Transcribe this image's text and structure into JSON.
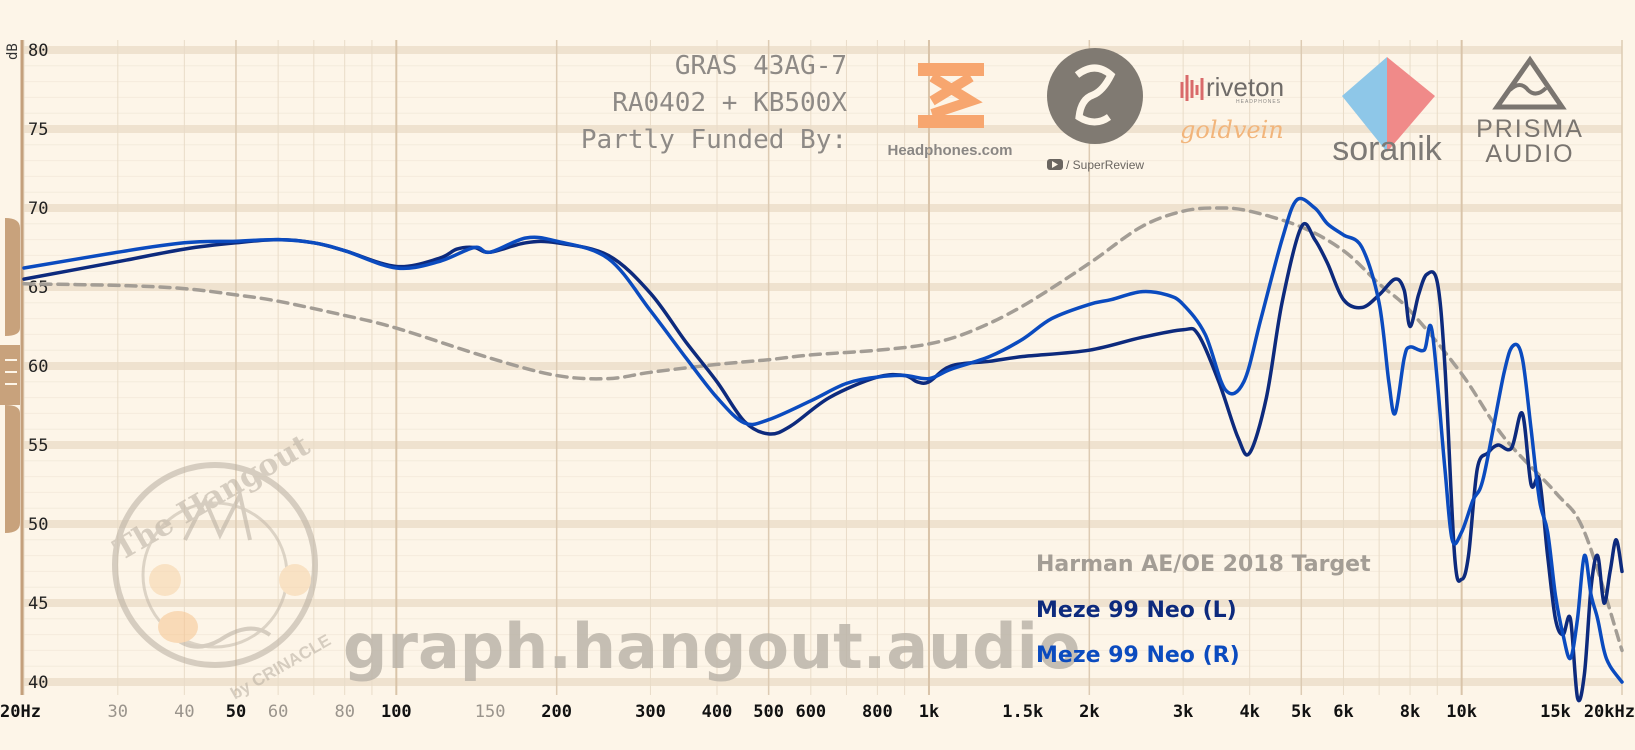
{
  "chart_data": {
    "type": "line",
    "ylabel": "dB",
    "ylim": [
      40,
      81
    ],
    "xlim": [
      20,
      20000
    ],
    "x_scale": "log",
    "grid": true,
    "y_ticks": [
      {
        "value": 80,
        "label": "80"
      },
      {
        "value": 75,
        "label": "75"
      },
      {
        "value": 70,
        "label": "70"
      },
      {
        "value": 65,
        "label": "65"
      },
      {
        "value": 60,
        "label": "60"
      },
      {
        "value": 55,
        "label": "55"
      },
      {
        "value": 50,
        "label": "50"
      },
      {
        "value": 45,
        "label": "45"
      },
      {
        "value": 40,
        "label": "40"
      }
    ],
    "x_ticks": [
      {
        "value": 20,
        "label": "20Hz",
        "major": true
      },
      {
        "value": 30,
        "label": "30",
        "major": false
      },
      {
        "value": 40,
        "label": "40",
        "major": false
      },
      {
        "value": 50,
        "label": "50",
        "major": true
      },
      {
        "value": 60,
        "label": "60",
        "major": false
      },
      {
        "value": 80,
        "label": "80",
        "major": false
      },
      {
        "value": 100,
        "label": "100",
        "major": true
      },
      {
        "value": 150,
        "label": "150",
        "major": false
      },
      {
        "value": 200,
        "label": "200",
        "major": true
      },
      {
        "value": 300,
        "label": "300",
        "major": true
      },
      {
        "value": 400,
        "label": "400",
        "major": true
      },
      {
        "value": 500,
        "label": "500",
        "major": true
      },
      {
        "value": 600,
        "label": "600",
        "major": true
      },
      {
        "value": 800,
        "label": "800",
        "major": true
      },
      {
        "value": 1000,
        "label": "1k",
        "major": true
      },
      {
        "value": 1500,
        "label": "1.5k",
        "major": true
      },
      {
        "value": 2000,
        "label": "2k",
        "major": true
      },
      {
        "value": 3000,
        "label": "3k",
        "major": true
      },
      {
        "value": 4000,
        "label": "4k",
        "major": true
      },
      {
        "value": 5000,
        "label": "5k",
        "major": true
      },
      {
        "value": 6000,
        "label": "6k",
        "major": true
      },
      {
        "value": 8000,
        "label": "8k",
        "major": true
      },
      {
        "value": 10000,
        "label": "10k",
        "major": true
      },
      {
        "value": 15000,
        "label": "15k",
        "major": true
      },
      {
        "value": 20000,
        "label": "20kHz",
        "major": true
      }
    ],
    "legend_placement": "bottom-right",
    "series": [
      {
        "name": "Harman AE/OE 2018 Target",
        "color": "#a39d95",
        "dashed": true,
        "points": [
          [
            20,
            65.2
          ],
          [
            30,
            65.1
          ],
          [
            40,
            64.9
          ],
          [
            50,
            64.5
          ],
          [
            60,
            64.1
          ],
          [
            80,
            63.2
          ],
          [
            100,
            62.4
          ],
          [
            150,
            60.5
          ],
          [
            200,
            59.4
          ],
          [
            250,
            59.2
          ],
          [
            300,
            59.6
          ],
          [
            400,
            60.1
          ],
          [
            500,
            60.4
          ],
          [
            600,
            60.7
          ],
          [
            800,
            61.0
          ],
          [
            1000,
            61.4
          ],
          [
            1200,
            62.2
          ],
          [
            1500,
            63.8
          ],
          [
            2000,
            66.5
          ],
          [
            2500,
            68.8
          ],
          [
            3000,
            69.8
          ],
          [
            3500,
            70.0
          ],
          [
            4000,
            69.8
          ],
          [
            5000,
            68.8
          ],
          [
            6000,
            67.3
          ],
          [
            7000,
            65.2
          ],
          [
            8000,
            63.5
          ],
          [
            10000,
            59.5
          ],
          [
            12000,
            55.5
          ],
          [
            15000,
            52.0
          ],
          [
            17000,
            49.5
          ],
          [
            20000,
            42.0
          ]
        ]
      },
      {
        "name": "Meze 99 Neo (L)",
        "color": "#0d2a7d",
        "dashed": false,
        "points": [
          [
            20,
            65.5
          ],
          [
            30,
            66.6
          ],
          [
            40,
            67.4
          ],
          [
            50,
            67.8
          ],
          [
            60,
            68.0
          ],
          [
            70,
            67.8
          ],
          [
            80,
            67.3
          ],
          [
            100,
            66.3
          ],
          [
            120,
            66.8
          ],
          [
            130,
            67.4
          ],
          [
            140,
            67.5
          ],
          [
            150,
            67.2
          ],
          [
            175,
            67.8
          ],
          [
            200,
            67.8
          ],
          [
            250,
            67.0
          ],
          [
            300,
            64.6
          ],
          [
            350,
            61.5
          ],
          [
            400,
            59.0
          ],
          [
            450,
            56.5
          ],
          [
            500,
            55.7
          ],
          [
            550,
            56.2
          ],
          [
            650,
            58.0
          ],
          [
            800,
            59.3
          ],
          [
            900,
            59.4
          ],
          [
            950,
            59.0
          ],
          [
            1000,
            59.0
          ],
          [
            1100,
            60.0
          ],
          [
            1300,
            60.3
          ],
          [
            1500,
            60.6
          ],
          [
            2000,
            61.0
          ],
          [
            2500,
            61.8
          ],
          [
            3000,
            62.3
          ],
          [
            3200,
            62.0
          ],
          [
            3500,
            59.0
          ],
          [
            3800,
            55.5
          ],
          [
            4000,
            54.5
          ],
          [
            4300,
            58.0
          ],
          [
            4600,
            64.0
          ],
          [
            5000,
            68.8
          ],
          [
            5300,
            68.0
          ],
          [
            5600,
            66.5
          ],
          [
            6000,
            64.2
          ],
          [
            6500,
            63.7
          ],
          [
            7000,
            64.5
          ],
          [
            7500,
            65.5
          ],
          [
            7800,
            64.8
          ],
          [
            8000,
            62.5
          ],
          [
            8300,
            64.5
          ],
          [
            8600,
            65.8
          ],
          [
            9000,
            65.3
          ],
          [
            9300,
            60.0
          ],
          [
            9700,
            48.0
          ],
          [
            10000,
            46.5
          ],
          [
            10300,
            48.0
          ],
          [
            10700,
            53.5
          ],
          [
            11200,
            54.5
          ],
          [
            11700,
            55.0
          ],
          [
            12400,
            54.8
          ],
          [
            13000,
            57.0
          ],
          [
            13500,
            52.5
          ],
          [
            14000,
            52.8
          ],
          [
            14500,
            48.0
          ],
          [
            15000,
            44.0
          ],
          [
            15500,
            43.0
          ],
          [
            16000,
            44.0
          ],
          [
            16500,
            39.0
          ],
          [
            17000,
            40.5
          ],
          [
            17500,
            46.0
          ],
          [
            18000,
            48.0
          ],
          [
            18500,
            45.0
          ],
          [
            19000,
            47.0
          ],
          [
            19500,
            49.0
          ],
          [
            20000,
            47.0
          ]
        ]
      },
      {
        "name": "Meze 99 Neo (R)",
        "color": "#0b4bbf",
        "dashed": false,
        "points": [
          [
            20,
            66.2
          ],
          [
            30,
            67.2
          ],
          [
            40,
            67.8
          ],
          [
            50,
            67.9
          ],
          [
            60,
            68.0
          ],
          [
            70,
            67.8
          ],
          [
            80,
            67.3
          ],
          [
            100,
            66.2
          ],
          [
            120,
            66.6
          ],
          [
            140,
            67.5
          ],
          [
            150,
            67.2
          ],
          [
            175,
            68.1
          ],
          [
            200,
            67.9
          ],
          [
            250,
            66.8
          ],
          [
            300,
            63.5
          ],
          [
            350,
            60.5
          ],
          [
            400,
            58.0
          ],
          [
            450,
            56.4
          ],
          [
            500,
            56.6
          ],
          [
            600,
            57.8
          ],
          [
            700,
            58.9
          ],
          [
            800,
            59.3
          ],
          [
            900,
            59.4
          ],
          [
            1000,
            59.2
          ],
          [
            1100,
            59.8
          ],
          [
            1300,
            60.6
          ],
          [
            1500,
            61.7
          ],
          [
            1700,
            63.0
          ],
          [
            2000,
            63.9
          ],
          [
            2200,
            64.2
          ],
          [
            2500,
            64.7
          ],
          [
            2800,
            64.5
          ],
          [
            3000,
            63.9
          ],
          [
            3300,
            62.0
          ],
          [
            3600,
            58.5
          ],
          [
            3900,
            59.0
          ],
          [
            4200,
            63.0
          ],
          [
            4600,
            68.0
          ],
          [
            4900,
            70.5
          ],
          [
            5300,
            70.0
          ],
          [
            5600,
            69.0
          ],
          [
            6000,
            68.3
          ],
          [
            6500,
            67.5
          ],
          [
            7000,
            64.0
          ],
          [
            7300,
            59.0
          ],
          [
            7500,
            57.0
          ],
          [
            7800,
            60.5
          ],
          [
            8000,
            61.2
          ],
          [
            8500,
            61.0
          ],
          [
            8800,
            62.2
          ],
          [
            9300,
            53.5
          ],
          [
            9600,
            49.0
          ],
          [
            10000,
            49.5
          ],
          [
            10500,
            51.5
          ],
          [
            11000,
            53.0
          ],
          [
            12000,
            59.5
          ],
          [
            12500,
            61.3
          ],
          [
            13000,
            60.5
          ],
          [
            13500,
            56.0
          ],
          [
            14000,
            51.5
          ],
          [
            14500,
            49.5
          ],
          [
            15000,
            45.5
          ],
          [
            15500,
            43.0
          ],
          [
            16000,
            41.5
          ],
          [
            16500,
            44.0
          ],
          [
            17000,
            48.0
          ],
          [
            17500,
            45.5
          ],
          [
            18000,
            44.0
          ],
          [
            18500,
            42.0
          ],
          [
            19000,
            41.0
          ],
          [
            20000,
            40.0
          ]
        ]
      }
    ]
  },
  "header": {
    "rig_line1": "GRAS 43AG-7",
    "rig_line2": "RA0402 + KB500X",
    "funded_by": "Partly Funded By:"
  },
  "sponsors": {
    "headphones_com": "Headphones.com",
    "super_review": "/ SuperReview",
    "riveton": "riveton",
    "riveton_sub": "HEADPHONES",
    "goldvein": "goldvein",
    "soranik": "soranik",
    "prisma_line1": "PRISMA",
    "prisma_line2": "AUDIO"
  },
  "watermark": {
    "site": "graph.hangout.audio",
    "badge_top": "The Hangout",
    "badge_bottom": "by CRINACLE"
  },
  "colors": {
    "background": "#fdf5e8",
    "axis": "#c4a07c",
    "target": "#a39d95",
    "left": "#0d2a7d",
    "right": "#0b4bbf"
  }
}
